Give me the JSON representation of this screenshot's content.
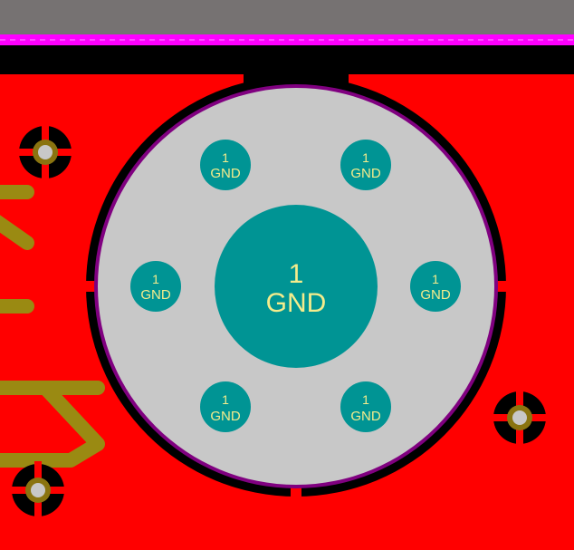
{
  "colors": {
    "copper_pour": "#ff0000",
    "board_edge": "#767272",
    "keepout": "#ff00ff",
    "clearance": "#000000",
    "mounting_ring": "#c8c8c8",
    "ring_outline": "#800080",
    "pad": "#009494",
    "pad_label": "#f4ec8c",
    "trace": "#9a8a12",
    "via_hole": "#c8c8c8",
    "via_ring": "#8a7410"
  },
  "center_pad": {
    "number": "1",
    "net": "GND"
  },
  "via_pads": [
    {
      "name": "top-left",
      "number": "1",
      "net": "GND"
    },
    {
      "name": "top-right",
      "number": "1",
      "net": "GND"
    },
    {
      "name": "left",
      "number": "1",
      "net": "GND"
    },
    {
      "name": "right",
      "number": "1",
      "net": "GND"
    },
    {
      "name": "bottom-left",
      "number": "1",
      "net": "GND"
    },
    {
      "name": "bottom-right",
      "number": "1",
      "net": "GND"
    }
  ]
}
